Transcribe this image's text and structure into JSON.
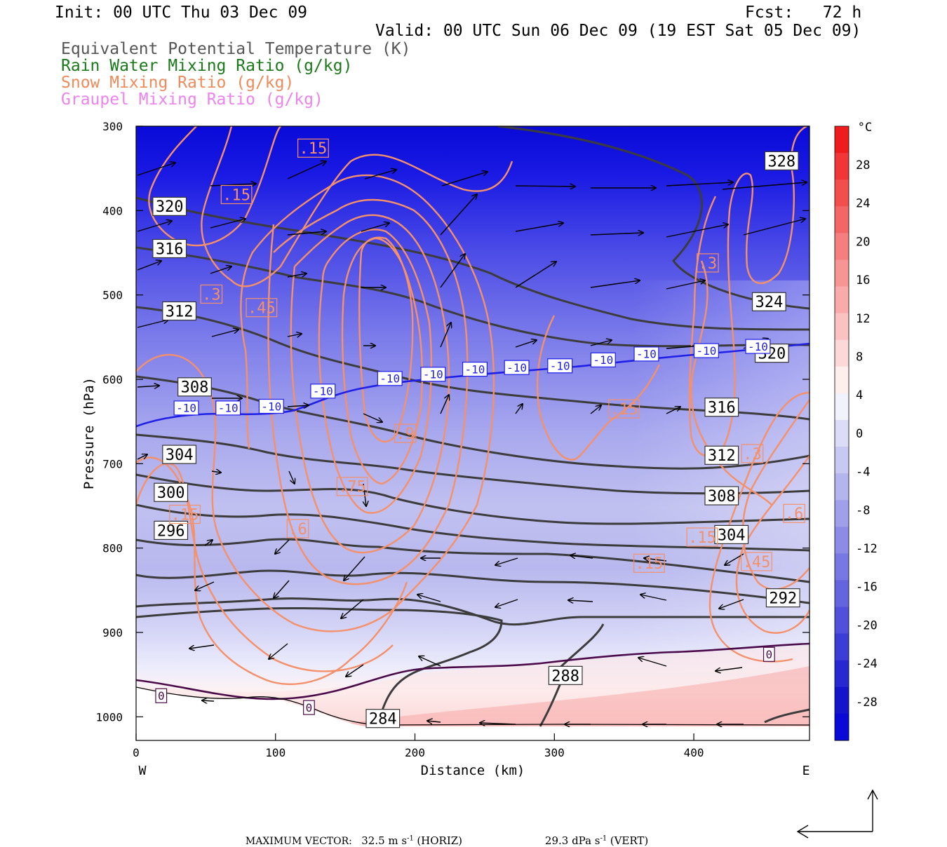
{
  "header": {
    "init": "Init: 00 UTC Thu 03 Dec 09",
    "fcst": "Fcst:   72 h",
    "valid": "Valid: 00 UTC Sun 06 Dec 09 (19 EST Sat 05 Dec 09)",
    "legend": [
      {
        "text": "Equivalent Potential Temperature (K)",
        "color": "#555555"
      },
      {
        "text": "Rain Water Mixing Ratio (g/kg)",
        "color": "#1a7a1a"
      },
      {
        "text": "Snow Mixing Ratio (g/kg)",
        "color": "#f08a5a"
      },
      {
        "text": "Graupel Mixing Ratio (g/kg)",
        "color": "#ee82ee"
      }
    ]
  },
  "footer": {
    "max_vector_label": "MAXIMUM VECTOR:",
    "horiz_value": "32.5 m s",
    "horiz_unit": "(HORIZ)",
    "vert_value": "29.3 dPa s",
    "vert_unit": "(VERT)",
    "exponent": "-1"
  },
  "chart_data": {
    "type": "contour",
    "xlabel": "Distance (km)",
    "ylabel": "Pressure (hPa)",
    "xlim": [
      0,
      483
    ],
    "ylim": [
      1028,
      300
    ],
    "x_ticks": [
      0,
      100,
      200,
      300,
      400
    ],
    "y_ticks": [
      300,
      400,
      500,
      600,
      700,
      800,
      900,
      1000
    ],
    "x_end_labels": {
      "left": "W",
      "right": "E"
    },
    "colorbar": {
      "unit": "°C",
      "ticks": [
        28,
        24,
        20,
        16,
        12,
        8,
        4,
        0,
        -4,
        -8,
        -12,
        -16,
        -20,
        -24,
        -28
      ],
      "colors": [
        "#ee1c1c",
        "#f03636",
        "#f24e4e",
        "#f36666",
        "#f57e7e",
        "#f79494",
        "#f9aaaa",
        "#fbc2c2",
        "#fdd8d8",
        "#feeeee",
        "#f2f2fc",
        "#dcdcf6",
        "#c8c8f2",
        "#b4b4ee",
        "#a0a0ea",
        "#8c8ce6",
        "#7878e2",
        "#6464de",
        "#5050da",
        "#3c3cd6",
        "#2828d2",
        "#1414cc",
        "#0a0ad8"
      ]
    },
    "theta_e_labels": [
      {
        "text": "328",
        "x": 463,
        "p": 341
      },
      {
        "text": "324",
        "x": 454,
        "p": 508
      },
      {
        "text": "320",
        "x": 456,
        "p": 569
      },
      {
        "text": "320",
        "x": 24,
        "p": 395
      },
      {
        "text": "316",
        "x": 24,
        "p": 445
      },
      {
        "text": "316",
        "x": 420,
        "p": 633
      },
      {
        "text": "312",
        "x": 31,
        "p": 519
      },
      {
        "text": "312",
        "x": 420,
        "p": 690
      },
      {
        "text": "308",
        "x": 42,
        "p": 609
      },
      {
        "text": "308",
        "x": 420,
        "p": 738
      },
      {
        "text": "304",
        "x": 31,
        "p": 689
      },
      {
        "text": "304",
        "x": 427,
        "p": 784
      },
      {
        "text": "300",
        "x": 25,
        "p": 734
      },
      {
        "text": "296",
        "x": 25,
        "p": 779
      },
      {
        "text": "292",
        "x": 464,
        "p": 859
      },
      {
        "text": "288",
        "x": 308,
        "p": 951
      },
      {
        "text": "284",
        "x": 177,
        "p": 1002
      }
    ],
    "snow_labels": [
      {
        "text": ".15",
        "x": 127,
        "p": 326
      },
      {
        "text": ".15",
        "x": 72,
        "p": 381
      },
      {
        "text": ".3",
        "x": 54,
        "p": 499
      },
      {
        "text": ".45",
        "x": 90,
        "p": 515
      },
      {
        "text": ".9",
        "x": 193,
        "p": 664
      },
      {
        "text": ".75",
        "x": 155,
        "p": 727
      },
      {
        "text": ".6",
        "x": 116,
        "p": 777
      },
      {
        "text": ".15",
        "x": 35,
        "p": 760
      },
      {
        "text": ".3",
        "x": 410,
        "p": 462
      },
      {
        "text": ".15",
        "x": 350,
        "p": 635
      },
      {
        "text": ".3",
        "x": 442,
        "p": 688
      },
      {
        "text": ".6",
        "x": 472,
        "p": 759
      },
      {
        "text": ".15",
        "x": 406,
        "p": 787
      },
      {
        "text": ".15",
        "x": 368,
        "p": 818
      },
      {
        "text": ".45",
        "x": 445,
        "p": 816
      }
    ],
    "temp_labels": [
      {
        "text": "-10",
        "x": 36,
        "p": 634
      },
      {
        "text": "-10",
        "x": 66,
        "p": 634
      },
      {
        "text": "-10",
        "x": 97,
        "p": 632
      },
      {
        "text": "-10",
        "x": 134,
        "p": 614
      },
      {
        "text": "-10",
        "x": 182,
        "p": 599
      },
      {
        "text": "-10",
        "x": 213,
        "p": 594
      },
      {
        "text": "-10",
        "x": 243,
        "p": 588
      },
      {
        "text": "-10",
        "x": 273,
        "p": 586
      },
      {
        "text": "-10",
        "x": 304,
        "p": 584
      },
      {
        "text": "-10",
        "x": 335,
        "p": 577
      },
      {
        "text": "-10",
        "x": 366,
        "p": 570
      },
      {
        "text": "-10",
        "x": 409,
        "p": 566
      },
      {
        "text": "-10",
        "x": 446,
        "p": 561
      },
      {
        "text": "0",
        "x": 18,
        "p": 975
      },
      {
        "text": "0",
        "x": 124,
        "p": 989
      },
      {
        "text": "0",
        "x": 454,
        "p": 926
      }
    ]
  }
}
